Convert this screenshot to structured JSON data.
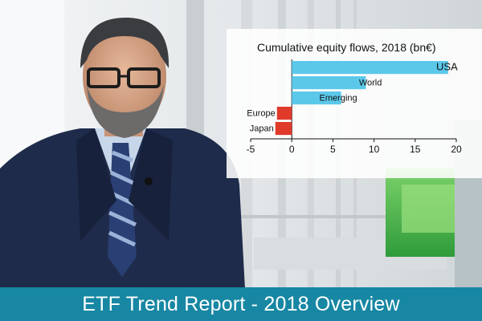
{
  "caption": "ETF Trend Report - 2018 Overview",
  "colors": {
    "positive": "#5bc8ea",
    "negative": "#e03a2a",
    "caption_bar": "#1787a3"
  },
  "chart_data": {
    "type": "bar",
    "orientation": "horizontal",
    "title": "Cumulative equity flows, 2018 (bn€)",
    "categories": [
      "USA",
      "World",
      "Emerging",
      "Europe",
      "Japan"
    ],
    "values": [
      19,
      9,
      6,
      -1.8,
      -2
    ],
    "xlim": [
      -5,
      20
    ],
    "xticks": [
      "-5",
      "0",
      "5",
      "10",
      "15",
      "20"
    ],
    "xlabel": "",
    "ylabel": "",
    "grid": false
  }
}
